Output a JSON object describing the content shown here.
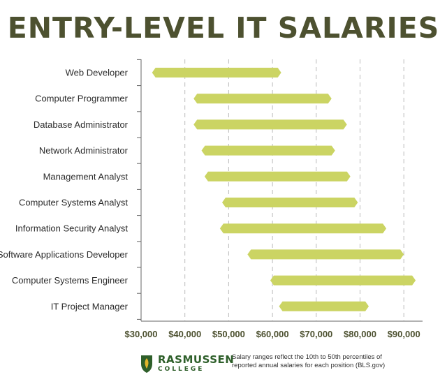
{
  "title": "ENTRY-LEVEL IT SALARIES",
  "colors": {
    "bar": "#cbd463",
    "title": "#4d5130",
    "logo_green": "#2e5f2a",
    "logo_gold": "#e2b52a",
    "grid": "#bbbbbb",
    "axis": "#666666"
  },
  "chart_data": {
    "type": "bar",
    "orientation": "horizontal-range",
    "title": "ENTRY-LEVEL IT SALARIES",
    "categories": [
      "Web Developer",
      "Computer Programmer",
      "Database Administrator",
      "Network Administrator",
      "Management Analyst",
      "Computer Systems Analyst",
      "Information Security Analyst",
      "Software Applications Developer",
      "Computer Systems Engineer",
      "IT Project Manager"
    ],
    "series": [
      {
        "ranges": [
          [
            32500,
            62000
          ],
          [
            42000,
            73500
          ],
          [
            42000,
            77000
          ],
          [
            43800,
            74300
          ],
          [
            44500,
            77800
          ],
          [
            48500,
            79500
          ],
          [
            48000,
            86000
          ],
          [
            54300,
            90000
          ],
          [
            59500,
            92700
          ],
          [
            61500,
            82000
          ]
        ]
      }
    ],
    "xlim": [
      30000,
      93000
    ],
    "xticks": [
      30000,
      40000,
      50000,
      60000,
      70000,
      80000,
      90000
    ],
    "xtick_labels": [
      "$30,000",
      "$40,000",
      "$50,000",
      "$60,000",
      "$70,000",
      "$80,000",
      "$90,000"
    ],
    "xlabel": "",
    "ylabel": "",
    "grid": "vertical dashed",
    "legend": "none"
  },
  "footer": {
    "logo_name": "RASMUSSEN",
    "logo_sub": "COLLEGE",
    "note_line1": "Salary ranges reflect the 10th to 50th percentiles of",
    "note_line2": "reported annual salaries for each position (BLS.gov)"
  }
}
